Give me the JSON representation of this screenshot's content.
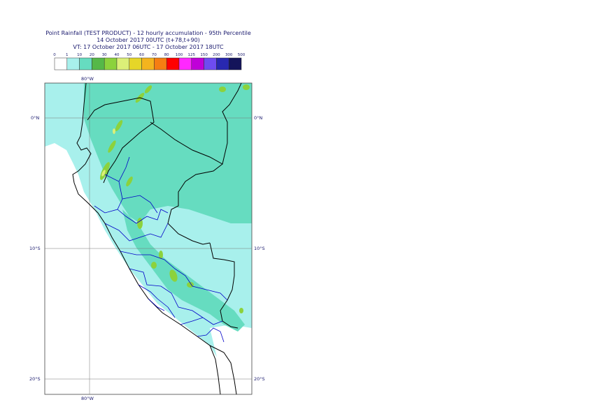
{
  "title": {
    "line1": "Point Rainfall (TEST PRODUCT) - 12 hourly accumulation - 95th Percentile",
    "line2": "14 October 2017 00UTC (t+78,t+90)",
    "line3": "VT: 17 October 2017 06UTC - 17 October 2017 18UTC"
  },
  "legend": {
    "thresholds": [
      "0",
      "1",
      "10",
      "20",
      "30",
      "40",
      "50",
      "60",
      "70",
      "80",
      "100",
      "125",
      "150",
      "200",
      "300",
      "500"
    ],
    "colors": [
      "#ffffff",
      "#a8f0ec",
      "#66dcc0",
      "#55b848",
      "#8cd23c",
      "#dcf078",
      "#e6d628",
      "#f4b41e",
      "#f67e12",
      "#ff0000",
      "#ff28ff",
      "#c000d8",
      "#6e4cf0",
      "#2828b0",
      "#14145a"
    ]
  },
  "map": {
    "lon_labels": [
      "80°W",
      "80°W"
    ],
    "lat_labels": [
      "0°N",
      "10°S",
      "20°S"
    ],
    "lat_labels_right": [
      "0°N",
      "10°S",
      "20°S"
    ]
  }
}
